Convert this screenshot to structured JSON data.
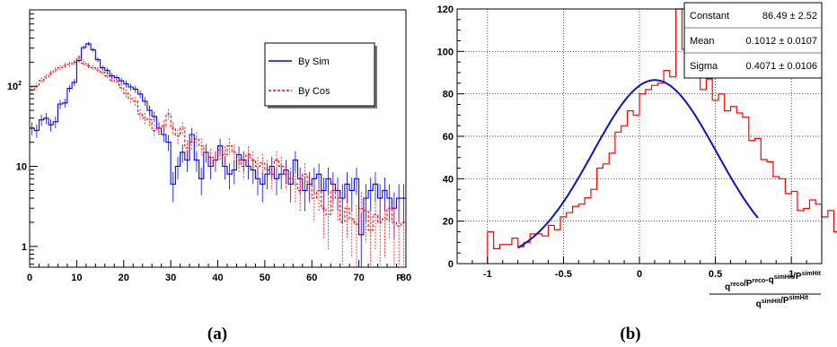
{
  "panels": {
    "a": "(a)",
    "b": "(b)"
  },
  "chart_data": [
    {
      "type": "histogram",
      "panel": "(a)",
      "xlabel": "P",
      "xlim": [
        0,
        80
      ],
      "ylim": [
        0.55,
        900
      ],
      "log_y": true,
      "grid": false,
      "x_ticks": [
        0,
        10,
        20,
        30,
        40,
        50,
        60,
        70,
        80
      ],
      "y_ticks": [
        {
          "value": 1,
          "label": "1"
        },
        {
          "value": 10,
          "label": "10"
        },
        {
          "value": 100,
          "label": "10",
          "sup": "2"
        }
      ],
      "bin_width": 1,
      "legend": {
        "placement": "top-right",
        "entries": [
          "By Sim",
          "By Cos"
        ]
      },
      "series": [
        {
          "name": "By Sim",
          "color": "#0000ff",
          "style": "solid",
          "values": [
            30,
            28,
            38,
            40,
            33,
            36,
            60,
            62,
            94,
            112,
            210,
            305,
            340,
            285,
            215,
            170,
            158,
            135,
            128,
            117,
            107,
            98,
            92,
            80,
            65,
            50,
            42,
            30,
            25,
            20,
            6,
            10,
            15,
            12,
            25,
            12,
            7,
            15,
            10,
            12,
            18,
            10,
            8,
            9,
            14,
            12,
            10,
            9,
            7,
            6,
            8,
            10,
            7,
            8,
            9,
            6,
            12,
            7,
            5,
            6,
            7,
            8,
            5,
            7,
            6,
            5,
            4,
            6,
            5,
            7,
            1.4,
            4,
            5,
            6,
            4,
            5,
            4,
            3,
            4,
            4
          ]
        },
        {
          "name": "By Cos",
          "color": "#ff0000",
          "style": "dashed",
          "values": [
            90,
            100,
            118,
            130,
            145,
            160,
            170,
            182,
            188,
            200,
            230,
            195,
            180,
            170,
            160,
            150,
            135,
            120,
            115,
            96,
            82,
            70,
            65,
            45,
            40,
            38,
            28,
            30,
            32,
            45,
            30,
            24,
            30,
            17,
            20,
            22,
            18,
            15,
            13,
            12,
            16,
            14,
            18,
            15,
            12,
            10,
            14,
            12,
            10,
            11,
            9,
            8,
            12,
            10,
            8,
            7,
            6,
            5,
            8,
            6,
            4,
            5,
            3,
            2.5,
            5,
            4,
            2,
            3,
            2.2,
            1.9,
            3,
            2.8,
            1.6,
            2.5,
            2,
            2.2,
            3,
            2,
            1.8,
            2
          ]
        }
      ]
    },
    {
      "type": "histogram",
      "panel": "(b)",
      "xlim": [
        -1.2,
        1.2
      ],
      "ylim": [
        0,
        120
      ],
      "grid": true,
      "x_ticks": [
        {
          "value": -1,
          "label": "-1"
        },
        {
          "value": -0.5,
          "label": "-0.5"
        },
        {
          "value": 0,
          "label": "0"
        },
        {
          "value": 0.5,
          "label": "0.5"
        },
        {
          "value": 1,
          "label": "1"
        }
      ],
      "y_ticks": [
        0,
        20,
        40,
        60,
        80,
        100,
        120
      ],
      "bin_width": 0.04,
      "x_start": -1.0,
      "series": [
        {
          "color": "#ff0000",
          "values": [
            15,
            7,
            9,
            9,
            12,
            8,
            10,
            14,
            14,
            13,
            18,
            16,
            22,
            24,
            27,
            28,
            31,
            35,
            45,
            47,
            52,
            62,
            65,
            72,
            70,
            80,
            82,
            84,
            85,
            91,
            88,
            120,
            101,
            105,
            97,
            82,
            87,
            77,
            80,
            72,
            74,
            71,
            69,
            58,
            59,
            49,
            48,
            41,
            40,
            33,
            34,
            25,
            26,
            30,
            28,
            22,
            25,
            15,
            18,
            15,
            16,
            14,
            13,
            16,
            11,
            13,
            12,
            11,
            16
          ]
        },
        {
          "type": "gaussian_fit",
          "color": "#1010c8",
          "constant": 86.49,
          "mean": 0.1012,
          "sigma": 0.4071,
          "x_range": [
            -0.8,
            0.78
          ]
        }
      ],
      "xlabel": {
        "numerator": [
          {
            "t": "q"
          },
          {
            "t": "reco",
            "sup": true
          },
          {
            "t": "/P"
          },
          {
            "t": "reco",
            "sup": true
          },
          {
            "t": "-q"
          },
          {
            "t": "simHit",
            "sup": true
          },
          {
            "t": "/P"
          },
          {
            "t": "simHit",
            "sup": true
          }
        ],
        "denominator": [
          {
            "t": "q"
          },
          {
            "t": "simHit",
            "sup": true
          },
          {
            "t": "/P"
          },
          {
            "t": "simHit",
            "sup": true
          }
        ]
      },
      "stats_box": [
        {
          "label": "Constant",
          "value": "86.49 ± 2.52"
        },
        {
          "label": "Mean",
          "value": "0.1012 ± 0.0107"
        },
        {
          "label": "Sigma",
          "value": "0.4071 ± 0.0106"
        }
      ]
    }
  ]
}
